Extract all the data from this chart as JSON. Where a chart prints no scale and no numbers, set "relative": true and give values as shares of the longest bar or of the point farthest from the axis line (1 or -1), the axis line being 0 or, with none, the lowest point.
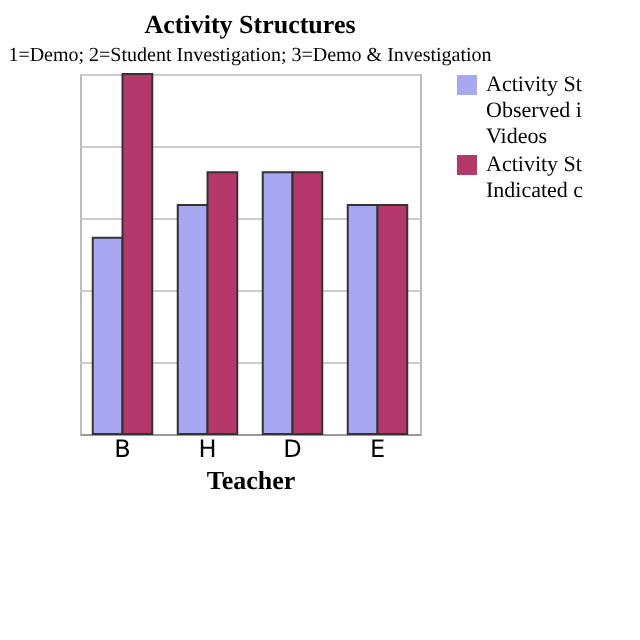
{
  "chart_data": {
    "type": "bar",
    "title": "Activity Structures",
    "subtitle": "1=Demo; 2=Student Investigation; 3=Demo & Investigation",
    "xlabel": "Teacher",
    "categories": [
      "B",
      "H",
      "D",
      "E"
    ],
    "relative": true,
    "grid": true,
    "legend": "right",
    "series": [
      {
        "name": "Activity St Observed i Videos",
        "color": "#a8a8f2",
        "values": [
          0.545,
          0.636,
          0.727,
          0.636
        ]
      },
      {
        "name": "Activity St Indicated c",
        "color": "#b5386b",
        "values": [
          1,
          0.727,
          0.727,
          0.636
        ]
      }
    ]
  }
}
